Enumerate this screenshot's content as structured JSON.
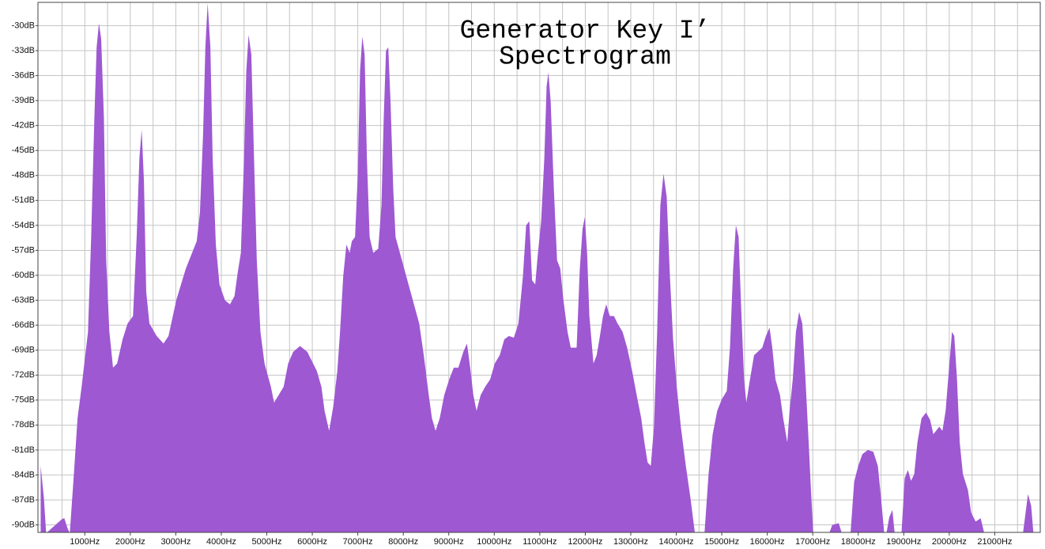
{
  "chart_data": {
    "type": "area",
    "title": [
      "Generator Key I’",
      "Spectrogram"
    ],
    "xlim": [
      -30,
      22000
    ],
    "ylim": [
      -90.9,
      -27.2
    ],
    "xticks": [
      {
        "value": 1000,
        "label": "1000Hz"
      },
      {
        "value": 2000,
        "label": "2000Hz"
      },
      {
        "value": 3000,
        "label": "3000Hz"
      },
      {
        "value": 4000,
        "label": "4000Hz"
      },
      {
        "value": 5000,
        "label": "5000Hz"
      },
      {
        "value": 6000,
        "label": "6000Hz"
      },
      {
        "value": 7000,
        "label": "7000Hz"
      },
      {
        "value": 8000,
        "label": "8000Hz"
      },
      {
        "value": 9000,
        "label": "9000Hz"
      },
      {
        "value": 10000,
        "label": "10000Hz"
      },
      {
        "value": 11000,
        "label": "11000Hz"
      },
      {
        "value": 12000,
        "label": "12000Hz"
      },
      {
        "value": 13000,
        "label": "13000Hz"
      },
      {
        "value": 14000,
        "label": "14000Hz"
      },
      {
        "value": 15000,
        "label": "15000Hz"
      },
      {
        "value": 16000,
        "label": "16000Hz"
      },
      {
        "value": 17000,
        "label": "17000Hz"
      },
      {
        "value": 18000,
        "label": "18000Hz"
      },
      {
        "value": 19000,
        "label": "19000Hz"
      },
      {
        "value": 20000,
        "label": "20000Hz"
      },
      {
        "value": 21000,
        "label": "21000Hz"
      }
    ],
    "x_minor_ticks": [
      500,
      1500,
      2500,
      3500,
      4500,
      5500,
      6500,
      7500,
      8500,
      9500,
      10500,
      11500,
      12500,
      13500,
      14500,
      15500,
      16500,
      17500,
      18500,
      19500,
      20500,
      21500
    ],
    "yticks": [
      {
        "value": -30,
        "label": "-30dB"
      },
      {
        "value": -33,
        "label": "-33dB"
      },
      {
        "value": -36,
        "label": "-36dB"
      },
      {
        "value": -39,
        "label": "-39dB"
      },
      {
        "value": -42,
        "label": "-42dB"
      },
      {
        "value": -45,
        "label": "-45dB"
      },
      {
        "value": -48,
        "label": "-48dB"
      },
      {
        "value": -51,
        "label": "-51dB"
      },
      {
        "value": -54,
        "label": "-54dB"
      },
      {
        "value": -57,
        "label": "-57dB"
      },
      {
        "value": -60,
        "label": "-60dB"
      },
      {
        "value": -63,
        "label": "-63dB"
      },
      {
        "value": -66,
        "label": "-66dB"
      },
      {
        "value": -69,
        "label": "-69dB"
      },
      {
        "value": -72,
        "label": "-72dB"
      },
      {
        "value": -75,
        "label": "-75dB"
      },
      {
        "value": -78,
        "label": "-78dB"
      },
      {
        "value": -81,
        "label": "-81dB"
      },
      {
        "value": -84,
        "label": "-84dB"
      },
      {
        "value": -87,
        "label": "-87dB"
      },
      {
        "value": -90,
        "label": "-90dB"
      }
    ],
    "grid": true,
    "color": "#9e58d2",
    "x": [
      30,
      100,
      150,
      500,
      550,
      620,
      670,
      760,
      840,
      930,
      1070,
      1140,
      1210,
      1260,
      1310,
      1360,
      1420,
      1470,
      1540,
      1620,
      1710,
      1830,
      1940,
      2060,
      2140,
      2200,
      2250,
      2300,
      2350,
      2420,
      2580,
      2730,
      2840,
      3010,
      3220,
      3460,
      3530,
      3600,
      3650,
      3700,
      3760,
      3810,
      3880,
      3960,
      4080,
      4190,
      4290,
      4360,
      4430,
      4500,
      4550,
      4600,
      4660,
      4710,
      4780,
      4860,
      4950,
      5090,
      5160,
      5260,
      5370,
      5470,
      5580,
      5730,
      5890,
      6100,
      6200,
      6270,
      6370,
      6460,
      6550,
      6610,
      6680,
      6750,
      6820,
      6870,
      6940,
      7000,
      7050,
      7100,
      7150,
      7200,
      7260,
      7340,
      7450,
      7520,
      7570,
      7620,
      7670,
      7720,
      7780,
      7830,
      7970,
      8140,
      8350,
      8450,
      8560,
      8630,
      8710,
      8800,
      8900,
      9010,
      9110,
      9210,
      9320,
      9400,
      9470,
      9540,
      9610,
      9700,
      9800,
      9910,
      10010,
      10120,
      10220,
      10320,
      10430,
      10530,
      10630,
      10700,
      10770,
      10830,
      10900,
      10960,
      11030,
      11100,
      11150,
      11190,
      11240,
      11310,
      11380,
      11450,
      11520,
      11610,
      11680,
      11810,
      11880,
      11940,
      11990,
      12040,
      12090,
      12180,
      12250,
      12310,
      12390,
      12460,
      12540,
      12630,
      12710,
      12820,
      12920,
      13030,
      13130,
      13230,
      13300,
      13370,
      13440,
      13510,
      13580,
      13650,
      13720,
      13790,
      13860,
      13930,
      14010,
      14100,
      14210,
      14310,
      14410,
      14620,
      14710,
      14800,
      14900,
      15000,
      15110,
      15180,
      15250,
      15310,
      15370,
      15420,
      15490,
      15540,
      15620,
      15710,
      15890,
      15970,
      16050,
      16110,
      16180,
      16280,
      16350,
      16440,
      16490,
      16560,
      16630,
      16700,
      16770,
      16840,
      16910,
      16960,
      17010,
      17360,
      17430,
      17570,
      17640,
      17830,
      17910,
      18000,
      18090,
      18210,
      18330,
      18430,
      18500,
      18570,
      18620,
      18680,
      18750,
      18800,
      18950,
      19020,
      19090,
      19160,
      19230,
      19300,
      19390,
      19490,
      19580,
      19650,
      19710,
      19780,
      19850,
      19920,
      19990,
      20060,
      20110,
      20170,
      20230,
      20300,
      20410,
      20480,
      20580,
      20690,
      20770,
      21620,
      21730,
      21800,
      21850
    ],
    "values": [
      -82.9,
      -86.7,
      -91,
      -89.3,
      -89.2,
      -90.4,
      -91,
      -83.9,
      -77.2,
      -73.4,
      -66.8,
      -55.4,
      -41.1,
      -32.6,
      -29.7,
      -31.6,
      -41.1,
      -58.2,
      -66.8,
      -71.1,
      -70.6,
      -67.7,
      -65.8,
      -64.9,
      -55.4,
      -45.9,
      -42.5,
      -48.7,
      -62.0,
      -65.8,
      -67.3,
      -68.2,
      -67.3,
      -63.0,
      -59.2,
      -55.9,
      -52.5,
      -43.0,
      -32.6,
      -27.3,
      -32.6,
      -45.9,
      -56.3,
      -61.1,
      -63.0,
      -63.5,
      -62.5,
      -59.7,
      -57.3,
      -45.9,
      -35.4,
      -31.1,
      -33.5,
      -44.0,
      -58.2,
      -66.8,
      -70.6,
      -73.4,
      -75.3,
      -74.4,
      -73.4,
      -70.6,
      -69.2,
      -68.5,
      -69.2,
      -71.5,
      -73.4,
      -76.3,
      -78.7,
      -75.8,
      -71.5,
      -66.8,
      -60.1,
      -56.3,
      -57.3,
      -55.9,
      -55.4,
      -47.8,
      -35.4,
      -31.3,
      -33.5,
      -45.9,
      -55.4,
      -57.3,
      -56.8,
      -51.6,
      -41.1,
      -33.0,
      -32.6,
      -39.2,
      -49.7,
      -55.4,
      -58.2,
      -61.6,
      -65.8,
      -69.6,
      -74.4,
      -77.2,
      -78.7,
      -77.2,
      -74.4,
      -72.5,
      -71.1,
      -71.1,
      -69.2,
      -68.2,
      -71.1,
      -74.4,
      -76.3,
      -74.4,
      -73.4,
      -72.5,
      -70.6,
      -69.6,
      -67.7,
      -67.3,
      -67.5,
      -65.8,
      -60.1,
      -54.0,
      -53.5,
      -60.6,
      -61.1,
      -57.3,
      -53.5,
      -45.9,
      -37.3,
      -35.6,
      -39.2,
      -49.7,
      -58.2,
      -59.2,
      -63.0,
      -66.8,
      -68.7,
      -68.7,
      -59.2,
      -54.4,
      -53.0,
      -57.3,
      -64.9,
      -70.6,
      -69.6,
      -67.7,
      -64.9,
      -63.5,
      -64.9,
      -64.9,
      -65.8,
      -66.8,
      -68.7,
      -71.5,
      -74.4,
      -77.2,
      -80.1,
      -82.5,
      -82.9,
      -78.2,
      -66.8,
      -51.6,
      -47.8,
      -50.6,
      -60.1,
      -67.7,
      -73.4,
      -78.2,
      -82.9,
      -86.7,
      -91,
      -91,
      -83.9,
      -79.1,
      -76.3,
      -74.9,
      -73.9,
      -68.7,
      -59.2,
      -54.0,
      -55.4,
      -63.0,
      -72.5,
      -75.3,
      -72.5,
      -69.6,
      -68.7,
      -67.3,
      -66.3,
      -68.7,
      -72.5,
      -74.4,
      -77.2,
      -80.1,
      -76.3,
      -72.5,
      -66.8,
      -64.4,
      -65.8,
      -72.5,
      -80.1,
      -85.8,
      -91,
      -91,
      -90.0,
      -89.8,
      -91,
      -91,
      -84.8,
      -82.9,
      -81.5,
      -81.0,
      -81.2,
      -82.9,
      -86.7,
      -91,
      -91,
      -89.1,
      -88.2,
      -91,
      -91,
      -84.4,
      -83.4,
      -84.7,
      -83.9,
      -80.1,
      -77.2,
      -76.5,
      -77.4,
      -79.1,
      -78.7,
      -78.2,
      -78.7,
      -76.3,
      -71.5,
      -66.8,
      -67.3,
      -72.5,
      -80.1,
      -83.9,
      -85.8,
      -88.5,
      -89.6,
      -89.2,
      -91,
      -91,
      -86.3,
      -87.7,
      -91
    ]
  }
}
